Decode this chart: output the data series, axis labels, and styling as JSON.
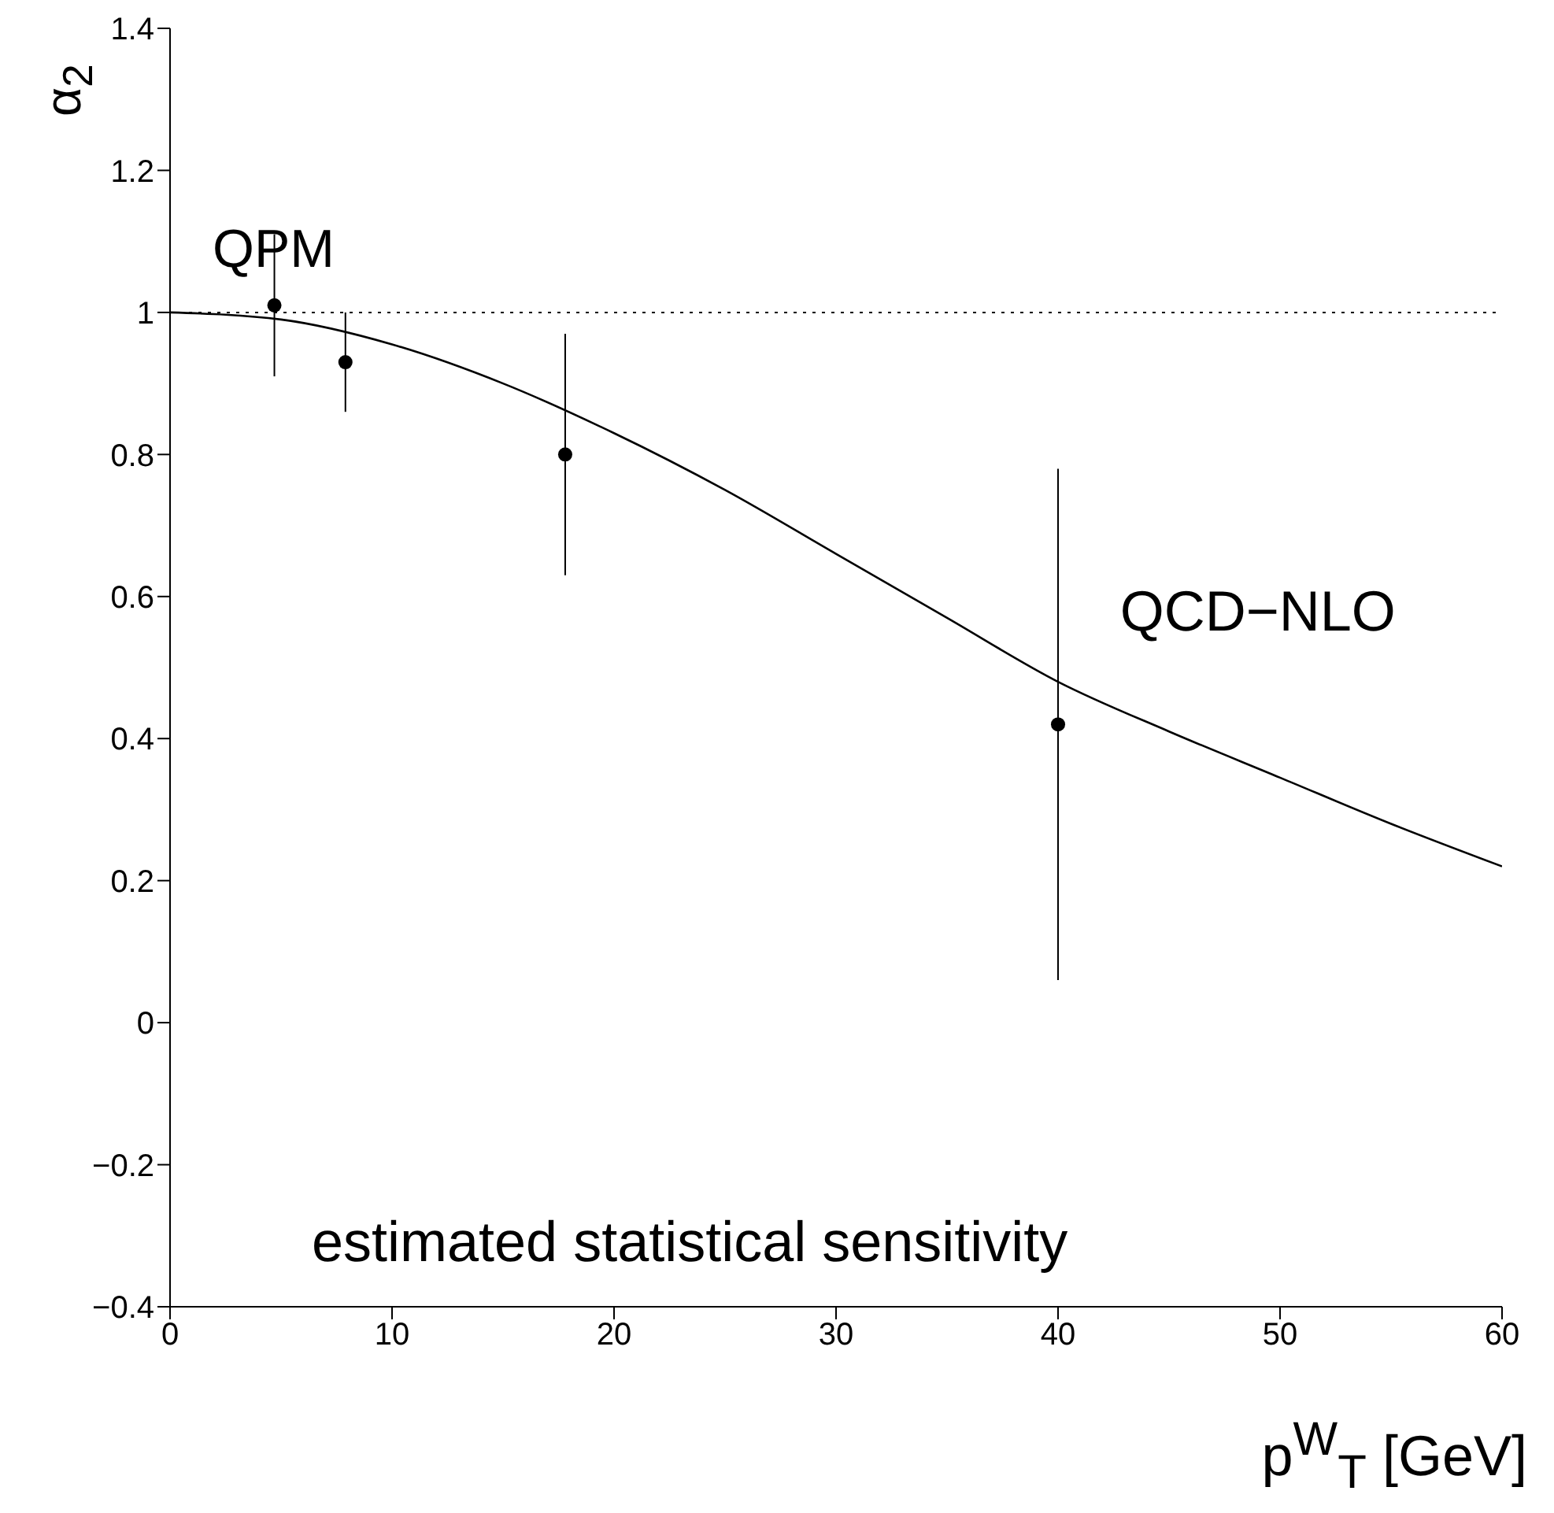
{
  "chart_data": {
    "type": "scatter",
    "xlabel": "p$^{W}$$_{T}$ [GeV]",
    "ylabel": "α$_{2}$",
    "xlim": [
      0,
      60
    ],
    "xticks": [
      0,
      10,
      20,
      30,
      40,
      50,
      60
    ],
    "ylim": [
      -0.4,
      1.4
    ],
    "yticks": [
      -0.4,
      -0.2,
      0,
      0.2,
      0.4,
      0.6,
      0.8,
      1,
      1.2,
      1.4
    ],
    "grid": false,
    "marker": "circle",
    "series": [
      {
        "color": "#000000",
        "x": [
          4.7,
          7.9,
          17.8,
          40
        ],
        "values": [
          1.01,
          0.93,
          0.8,
          0.42
        ],
        "errors": [
          0.1,
          0.07,
          0.17,
          0.36
        ]
      },
      {
        "type": "line",
        "name": "QCD−NLO",
        "color": "#000000",
        "marker": "none",
        "x": [
          0,
          5,
          10,
          15,
          20,
          25,
          30,
          35,
          40,
          45,
          50,
          55,
          60
        ],
        "values": [
          1.0,
          0.99,
          0.955,
          0.9,
          0.83,
          0.75,
          0.66,
          0.57,
          0.48,
          0.41,
          0.345,
          0.28,
          0.22
        ]
      }
    ],
    "ref_lines": [
      {
        "axis": "y",
        "value": 1,
        "label": "QPM",
        "line_style": "dotted",
        "color": "#000000"
      }
    ],
    "annotations": [
      "estimated statistical sensitivity"
    ]
  }
}
